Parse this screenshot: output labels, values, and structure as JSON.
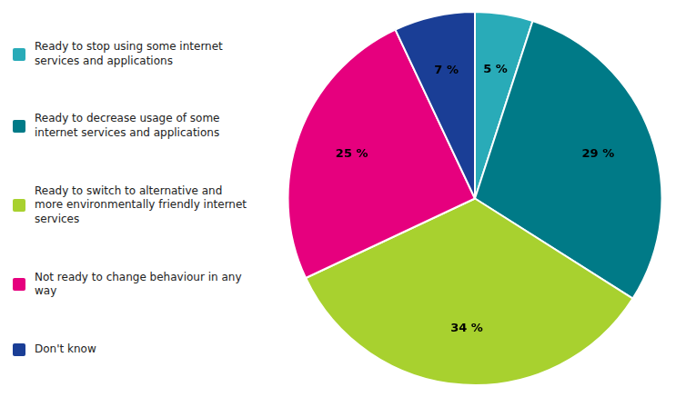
{
  "chart_data": {
    "type": "pie",
    "categories": [
      "Ready to stop using some internet\nservices and applications",
      "Ready to decrease usage of some\ninternet services and applications",
      "Ready to switch to alternative and\nmore environmentally friendly internet\nservices",
      "Not ready to change behaviour in any\nway",
      "Don't know"
    ],
    "values": [
      5,
      29,
      34,
      25,
      7
    ],
    "value_labels": [
      "5 %",
      "29 %",
      "34 %",
      "25 %",
      "7 %"
    ],
    "colors": [
      "#29ABB8",
      "#007A87",
      "#A8D12F",
      "#E6007E",
      "#1A3E96"
    ],
    "data_labels": true,
    "legend": "left"
  }
}
